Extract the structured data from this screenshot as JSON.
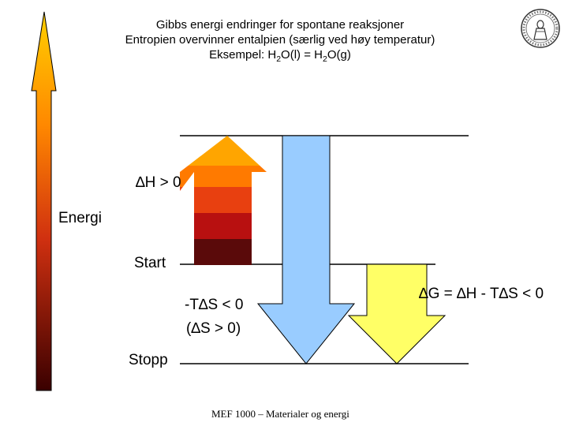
{
  "title": {
    "line1": "Gibbs energi endringer for spontane reaksjoner",
    "line2": "Entropien overvinner entalpien (særlig ved høy temperatur)",
    "line3_prefix": "Eksempel: H",
    "line3_sub1": "2",
    "line3_mid": "O(l) = H",
    "line3_sub2": "2",
    "line3_suffix": "O(g)"
  },
  "labels": {
    "delta_h": "∆H > 0",
    "energy_axis": "Energi",
    "start": "Start",
    "minus_t_delta_s": "-T∆S < 0",
    "delta_s_positive": "(∆S > 0)",
    "delta_g": "∆G = ∆H - T∆S < 0",
    "stop": "Stopp"
  },
  "footer": "MEF 1000 – Materialer og energi",
  "colors": {
    "enthalpy_arrow_bands": [
      "#ffa500",
      "#ff7a00",
      "#e84010",
      "#b81010",
      "#5a0a0a"
    ],
    "entropy_arrow": "#99ccff",
    "gibbs_arrow": "#ffff66",
    "energy_axis_gradient": [
      "#ffd000",
      "#ff8800",
      "#d03010",
      "#3a0000"
    ]
  },
  "logo": "university-seal"
}
